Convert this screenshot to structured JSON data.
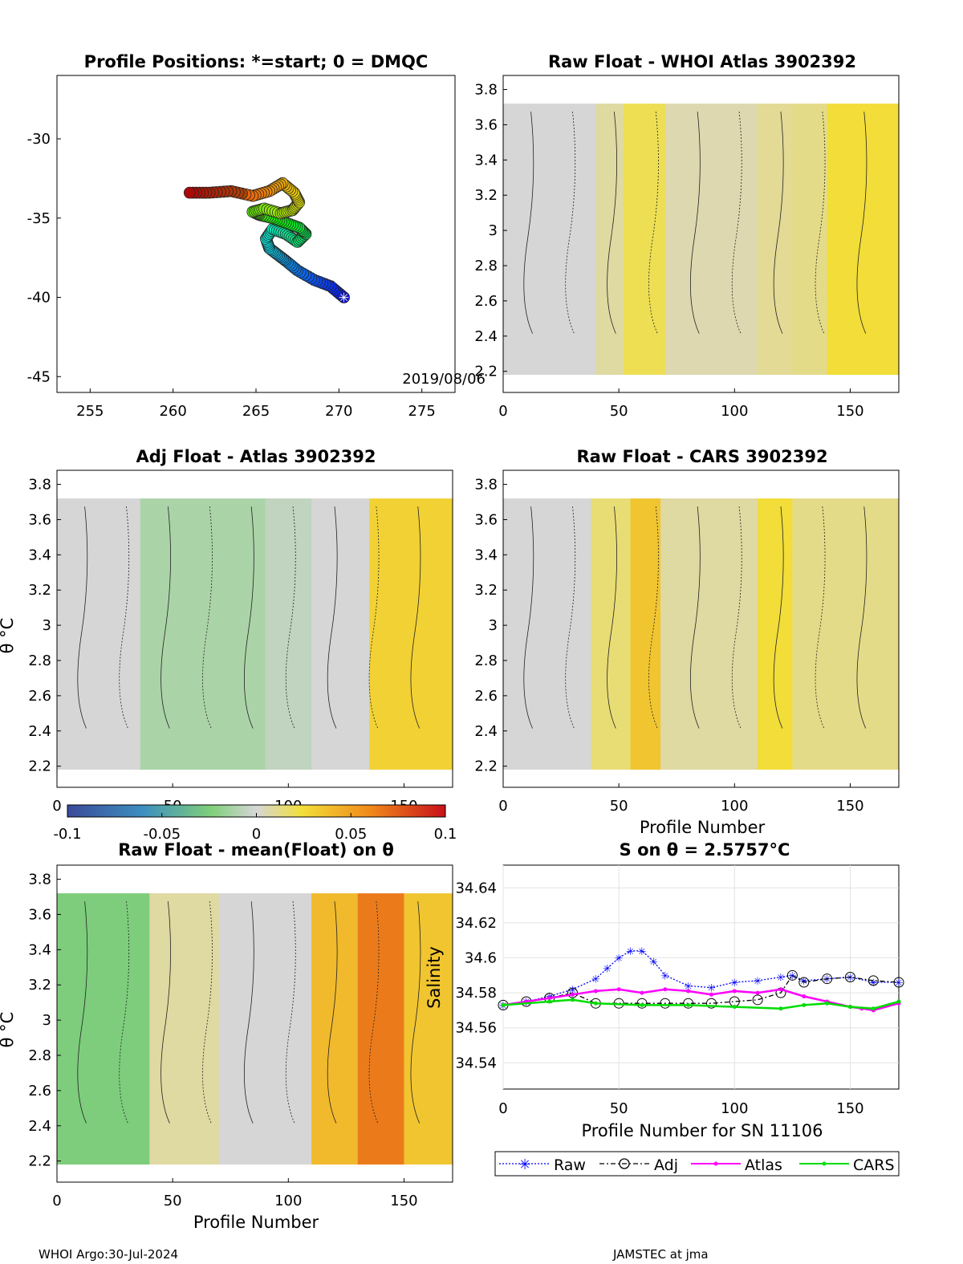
{
  "footer": {
    "left": "WHOI Argo:30-Jul-2024",
    "right": "JAMSTEC at jma"
  },
  "colorbar": {
    "ticks": [
      "-0.1",
      "-0.05",
      "0",
      "0.05",
      "0.1"
    ],
    "range": [
      -0.1,
      0.1
    ]
  },
  "theta_ticks": [
    "3.8",
    "3.6",
    "3.4",
    "3.2",
    "3",
    "2.8",
    "2.6",
    "2.4",
    "2.2"
  ],
  "profile_ticks": [
    "0",
    "50",
    "100",
    "150"
  ],
  "theta_label": "θ °C",
  "panels": {
    "map": {
      "title": "Profile Positions: *=start; 0 = DMQC",
      "date": "2019/08/06",
      "xticks": [
        "255",
        "260",
        "265",
        "270",
        "275"
      ],
      "yticks": [
        "-30",
        "-35",
        "-40",
        "-45"
      ]
    },
    "raw_atlas": {
      "title": "Raw Float - WHOI Atlas  3902392"
    },
    "adj_atlas": {
      "title": "Adj Float - Atlas  3902392"
    },
    "raw_cars": {
      "title": "Raw Float - CARS  3902392",
      "xlabel": "Profile Number"
    },
    "raw_mean": {
      "title": "Raw Float - mean(Float) on θ",
      "xlabel": "Profile Number"
    },
    "salinity": {
      "title": "S on θ = 2.5757°C",
      "xlabel": "Profile Number for SN 11106",
      "ylabel": "Salinity",
      "yticks": [
        "34.64",
        "34.62",
        "34.6",
        "34.58",
        "34.56",
        "34.54"
      ],
      "legend": [
        "Raw",
        "Adj",
        "Atlas",
        "CARS"
      ]
    }
  },
  "chart_data": [
    {
      "type": "scatter",
      "title": "Profile Positions: *=start; 0 = DMQC",
      "xlim": [
        253,
        277
      ],
      "ylim": [
        -46,
        -26
      ],
      "x": [
        270.3,
        269.5,
        268.5,
        267.5,
        266.8,
        266.3,
        265.8,
        265.6,
        266.0,
        266.8,
        267.5,
        268.0,
        267.6,
        266.8,
        266.0,
        265.2,
        264.8,
        265.5,
        266.5,
        267.2,
        267.6,
        267.3,
        266.6,
        265.8,
        264.8,
        263.5,
        262.2,
        261.0
      ],
      "y": [
        -40.0,
        -39.3,
        -38.9,
        -38.3,
        -37.7,
        -37.3,
        -36.9,
        -36.3,
        -35.7,
        -36.0,
        -36.5,
        -36.0,
        -35.6,
        -35.3,
        -35.0,
        -34.8,
        -34.6,
        -34.4,
        -34.7,
        -34.5,
        -34.0,
        -33.4,
        -32.8,
        -33.3,
        -33.6,
        -33.3,
        -33.4,
        -33.4
      ]
    },
    {
      "type": "heatmap",
      "title": "Raw Float - WHOI Atlas  3902392",
      "xlim": [
        0,
        171
      ],
      "ylim": [
        2.08,
        3.88
      ],
      "colorbar_range": [
        -0.1,
        0.1
      ],
      "bands": [
        {
          "x0": 0,
          "x1": 40,
          "value": 0.0
        },
        {
          "x0": 40,
          "x1": 52,
          "value": 0.008
        },
        {
          "x0": 52,
          "x1": 70,
          "value": 0.02
        },
        {
          "x0": 70,
          "x1": 110,
          "value": 0.006
        },
        {
          "x0": 110,
          "x1": 125,
          "value": 0.01
        },
        {
          "x0": 125,
          "x1": 140,
          "value": 0.012
        },
        {
          "x0": 140,
          "x1": 171,
          "value": 0.025
        }
      ]
    },
    {
      "type": "heatmap",
      "title": "Adj Float - Atlas  3902392",
      "xlim": [
        0,
        171
      ],
      "ylim": [
        2.08,
        3.88
      ],
      "colorbar_range": [
        -0.1,
        0.1
      ],
      "bands": [
        {
          "x0": 0,
          "x1": 36,
          "value": 0.0
        },
        {
          "x0": 36,
          "x1": 90,
          "value": -0.012
        },
        {
          "x0": 90,
          "x1": 110,
          "value": -0.006
        },
        {
          "x0": 110,
          "x1": 135,
          "value": 0.0
        },
        {
          "x0": 135,
          "x1": 171,
          "value": 0.03
        }
      ]
    },
    {
      "type": "heatmap",
      "title": "Raw Float - CARS  3902392",
      "xlabel": "Profile Number",
      "xlim": [
        0,
        171
      ],
      "ylim": [
        2.08,
        3.88
      ],
      "colorbar_range": [
        -0.1,
        0.1
      ],
      "bands": [
        {
          "x0": 0,
          "x1": 38,
          "value": 0.0
        },
        {
          "x0": 38,
          "x1": 55,
          "value": 0.015
        },
        {
          "x0": 55,
          "x1": 68,
          "value": 0.035
        },
        {
          "x0": 68,
          "x1": 110,
          "value": 0.008
        },
        {
          "x0": 110,
          "x1": 125,
          "value": 0.025
        },
        {
          "x0": 125,
          "x1": 171,
          "value": 0.012
        }
      ]
    },
    {
      "type": "heatmap",
      "title": "Raw Float - mean(Float) on θ",
      "xlabel": "Profile Number",
      "xlim": [
        0,
        171
      ],
      "ylim": [
        2.08,
        3.88
      ],
      "colorbar_range": [
        -0.1,
        0.1
      ],
      "bands": [
        {
          "x0": 0,
          "x1": 40,
          "value": -0.025
        },
        {
          "x0": 40,
          "x1": 70,
          "value": 0.008
        },
        {
          "x0": 70,
          "x1": 110,
          "value": 0.0
        },
        {
          "x0": 110,
          "x1": 130,
          "value": 0.04
        },
        {
          "x0": 130,
          "x1": 150,
          "value": 0.065
        },
        {
          "x0": 150,
          "x1": 171,
          "value": 0.035
        }
      ]
    },
    {
      "type": "line",
      "title": "S on θ = 2.5757°C",
      "xlabel": "Profile Number for SN 11106",
      "ylabel": "Salinity",
      "xlim": [
        0,
        171
      ],
      "ylim": [
        34.525,
        34.653
      ],
      "series": [
        {
          "name": "Raw",
          "color": "#0000ff",
          "x": [
            0,
            10,
            20,
            30,
            40,
            45,
            50,
            55,
            60,
            65,
            70,
            80,
            90,
            100,
            110,
            120,
            125,
            130,
            140,
            150,
            160,
            171
          ],
          "y": [
            34.573,
            34.575,
            34.578,
            34.582,
            34.588,
            34.594,
            34.6,
            34.604,
            34.604,
            34.598,
            34.59,
            34.584,
            34.583,
            34.586,
            34.587,
            34.589,
            34.59,
            34.587,
            34.588,
            34.589,
            34.586,
            34.586
          ]
        },
        {
          "name": "Adj",
          "color": "#000000",
          "x": [
            0,
            10,
            20,
            30,
            40,
            50,
            60,
            70,
            80,
            90,
            100,
            110,
            120,
            125,
            130,
            140,
            150,
            160,
            171
          ],
          "y": [
            34.573,
            34.575,
            34.577,
            34.58,
            34.574,
            34.574,
            34.574,
            34.574,
            34.574,
            34.574,
            34.575,
            34.576,
            34.58,
            34.59,
            34.586,
            34.588,
            34.589,
            34.587,
            34.586
          ]
        },
        {
          "name": "Atlas",
          "color": "#ff00ff",
          "x": [
            0,
            10,
            20,
            30,
            40,
            50,
            60,
            70,
            80,
            90,
            100,
            110,
            120,
            130,
            140,
            150,
            155,
            160,
            171
          ],
          "y": [
            34.573,
            34.575,
            34.577,
            34.579,
            34.581,
            34.582,
            34.58,
            34.582,
            34.581,
            34.579,
            34.581,
            34.58,
            34.582,
            34.578,
            34.575,
            34.572,
            34.571,
            34.57,
            34.574
          ]
        },
        {
          "name": "CARS",
          "color": "#00dd00",
          "x": [
            0,
            20,
            30,
            40,
            60,
            80,
            100,
            120,
            130,
            140,
            150,
            160,
            171
          ],
          "y": [
            34.573,
            34.575,
            34.576,
            34.574,
            34.573,
            34.573,
            34.572,
            34.571,
            34.573,
            34.574,
            34.572,
            34.571,
            34.575
          ]
        }
      ]
    }
  ]
}
